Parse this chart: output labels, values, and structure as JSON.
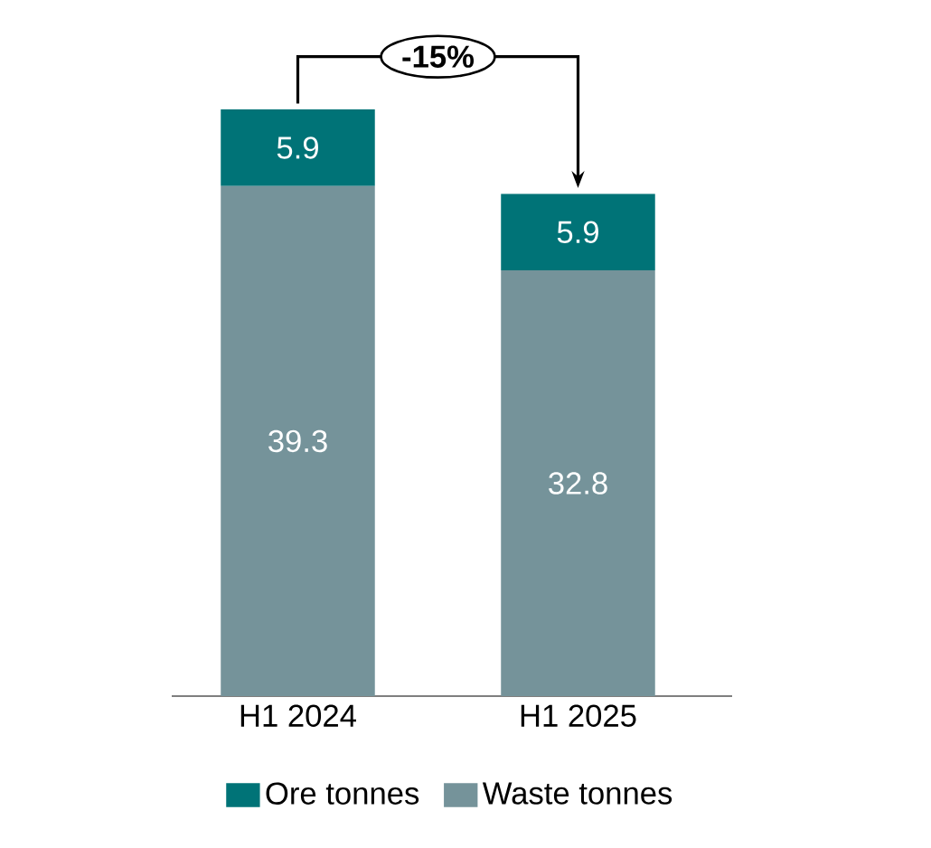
{
  "chart_data": {
    "type": "bar",
    "stacked": true,
    "categories": [
      "H1 2024",
      "H1 2025"
    ],
    "series": [
      {
        "name": "Waste tonnes",
        "color": "#75939a",
        "values": [
          39.3,
          32.8
        ]
      },
      {
        "name": "Ore tonnes",
        "color": "#007377",
        "values": [
          5.9,
          5.9
        ]
      }
    ],
    "data_labels": true,
    "legend": "bottom",
    "annotations": [
      "-15%"
    ]
  }
}
